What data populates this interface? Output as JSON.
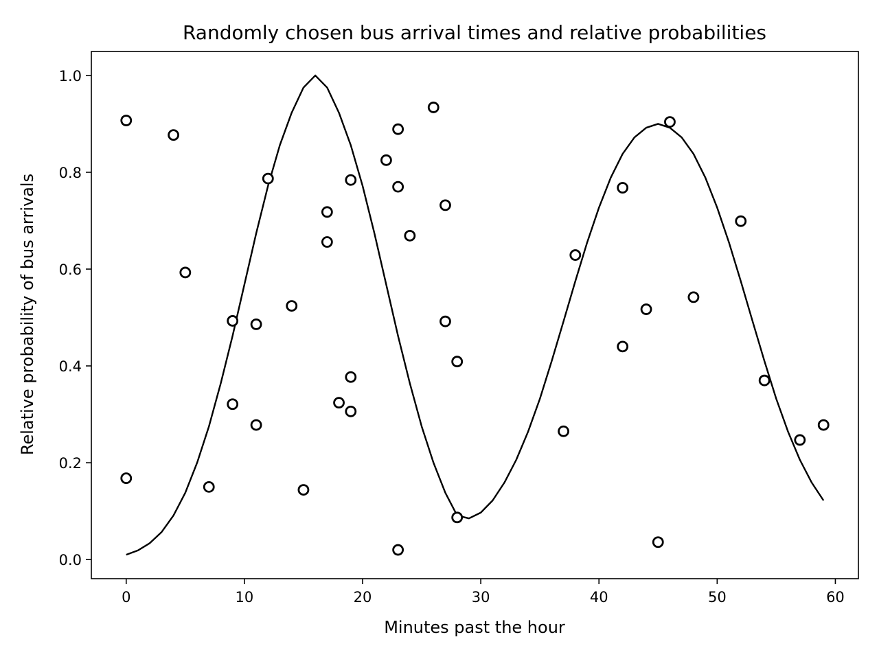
{
  "chart_data": {
    "type": "scatter",
    "title": "Randomly chosen bus arrival times and relative probabilities",
    "xlabel": "Minutes past the hour",
    "ylabel": "Relative probability of bus arrivals",
    "xlim": [
      -2.95,
      61.95
    ],
    "ylim": [
      -0.0395,
      1.0495
    ],
    "xticks": [
      0,
      10,
      20,
      30,
      40,
      50,
      60
    ],
    "xtick_labels": [
      "0",
      "10",
      "20",
      "30",
      "40",
      "50",
      "60"
    ],
    "yticks": [
      0.0,
      0.2,
      0.4,
      0.6,
      0.8,
      1.0
    ],
    "ytick_labels": [
      "0.0",
      "0.2",
      "0.4",
      "0.6",
      "0.8",
      "1.0"
    ],
    "grid": false,
    "legend": "none",
    "colors": {
      "line": "#000000",
      "marker_edge": "#000000",
      "marker_face": "#ffffff",
      "axes": "#000000",
      "background": "#ffffff"
    },
    "series": [
      {
        "type": "line",
        "x": [
          0,
          1,
          2,
          3,
          4,
          5,
          6,
          7,
          8,
          9,
          10,
          11,
          12,
          13,
          14,
          15,
          16,
          17,
          18,
          19,
          20,
          21,
          22,
          23,
          24,
          25,
          26,
          27,
          28,
          29,
          30,
          31,
          32,
          33,
          34,
          35,
          36,
          37,
          38,
          39,
          40,
          41,
          42,
          43,
          44,
          45,
          46,
          47,
          48,
          49,
          50,
          51,
          52,
          53,
          54,
          55,
          56,
          57,
          58,
          59
        ],
        "y": [
          0.01,
          0.019,
          0.034,
          0.057,
          0.091,
          0.138,
          0.2,
          0.275,
          0.364,
          0.462,
          0.568,
          0.674,
          0.772,
          0.856,
          0.923,
          0.975,
          1.0,
          0.975,
          0.923,
          0.856,
          0.772,
          0.674,
          0.568,
          0.462,
          0.364,
          0.275,
          0.2,
          0.138,
          0.091,
          0.085,
          0.097,
          0.122,
          0.159,
          0.206,
          0.264,
          0.332,
          0.41,
          0.492,
          0.575,
          0.655,
          0.727,
          0.789,
          0.838,
          0.872,
          0.892,
          0.9,
          0.892,
          0.872,
          0.838,
          0.789,
          0.727,
          0.655,
          0.575,
          0.492,
          0.41,
          0.332,
          0.264,
          0.206,
          0.159,
          0.122
        ]
      },
      {
        "type": "scatter",
        "points": [
          [
            0,
            0.907
          ],
          [
            0,
            0.168
          ],
          [
            4,
            0.877
          ],
          [
            5,
            0.593
          ],
          [
            7,
            0.15
          ],
          [
            9,
            0.493
          ],
          [
            9,
            0.321
          ],
          [
            11,
            0.486
          ],
          [
            11,
            0.278
          ],
          [
            12,
            0.787
          ],
          [
            14,
            0.524
          ],
          [
            15,
            0.144
          ],
          [
            17,
            0.718
          ],
          [
            17,
            0.656
          ],
          [
            18,
            0.324
          ],
          [
            19,
            0.784
          ],
          [
            19,
            0.377
          ],
          [
            19,
            0.306
          ],
          [
            22,
            0.825
          ],
          [
            23,
            0.889
          ],
          [
            23,
            0.77
          ],
          [
            23,
            0.02
          ],
          [
            24,
            0.669
          ],
          [
            26,
            0.934
          ],
          [
            27,
            0.732
          ],
          [
            27,
            0.492
          ],
          [
            28,
            0.409
          ],
          [
            28,
            0.087
          ],
          [
            37,
            0.265
          ],
          [
            38,
            0.629
          ],
          [
            42,
            0.768
          ],
          [
            42,
            0.44
          ],
          [
            44,
            0.517
          ],
          [
            45,
            0.036
          ],
          [
            46,
            0.904
          ],
          [
            48,
            0.542
          ],
          [
            52,
            0.699
          ],
          [
            54,
            0.37
          ],
          [
            57,
            0.247
          ],
          [
            59,
            0.278
          ]
        ]
      }
    ]
  }
}
